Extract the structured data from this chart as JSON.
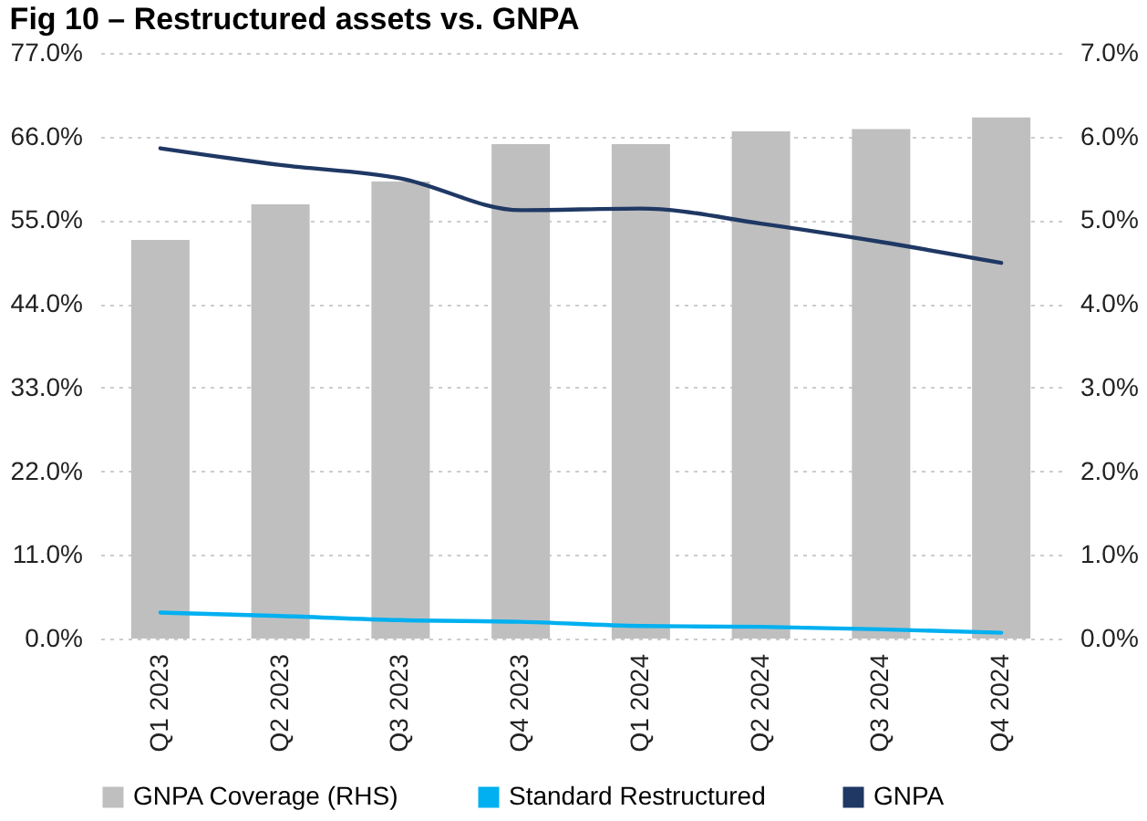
{
  "chart_data": {
    "type": "bar",
    "title": "Fig 10 – Restructured assets vs. GNPA",
    "categories": [
      "Q1 2023",
      "Q2 2023",
      "Q3 2023",
      "Q4 2023",
      "Q1 2024",
      "Q2 2024",
      "Q3 2024",
      "Q4 2024"
    ],
    "series": [
      {
        "name": "GNPA Coverage (RHS)",
        "color": "#bfbfbf",
        "values": [
          52.4,
          57.1,
          60.1,
          65.0,
          65.0,
          66.7,
          67.0,
          68.5
        ]
      },
      {
        "name": "Standard Restructured",
        "type": "line",
        "axis": "y2",
        "color": "#00b0f0",
        "values": [
          0.31,
          0.27,
          0.22,
          0.2,
          0.15,
          0.14,
          0.11,
          0.07
        ]
      },
      {
        "name": "GNPA",
        "type": "line",
        "axis": "y2",
        "color": "#1f3864",
        "values": [
          5.86,
          5.66,
          5.5,
          5.12,
          5.14,
          4.96,
          4.74,
          4.49
        ]
      }
    ],
    "ylim": [
      0,
      77
    ],
    "yticks": [
      {
        "value": 0,
        "label": "0.0%"
      },
      {
        "value": 11,
        "label": "11.0%"
      },
      {
        "value": 22,
        "label": "22.0%"
      },
      {
        "value": 33,
        "label": "33.0%"
      },
      {
        "value": 44,
        "label": "44.0%"
      },
      {
        "value": 55,
        "label": "55.0%"
      },
      {
        "value": 66,
        "label": "66.0%"
      },
      {
        "value": 77,
        "label": "77.0%"
      }
    ],
    "y2lim": [
      0,
      7
    ],
    "y2ticks": [
      {
        "value": 0,
        "label": "0.0%"
      },
      {
        "value": 1,
        "label": "1.0%"
      },
      {
        "value": 2,
        "label": "2.0%"
      },
      {
        "value": 3,
        "label": "3.0%"
      },
      {
        "value": 4,
        "label": "4.0%"
      },
      {
        "value": 5,
        "label": "5.0%"
      },
      {
        "value": 6,
        "label": "6.0%"
      },
      {
        "value": 7,
        "label": "7.0%"
      }
    ],
    "grid": "y",
    "legend": "bottom",
    "line_style": "solid",
    "marker": "none"
  }
}
